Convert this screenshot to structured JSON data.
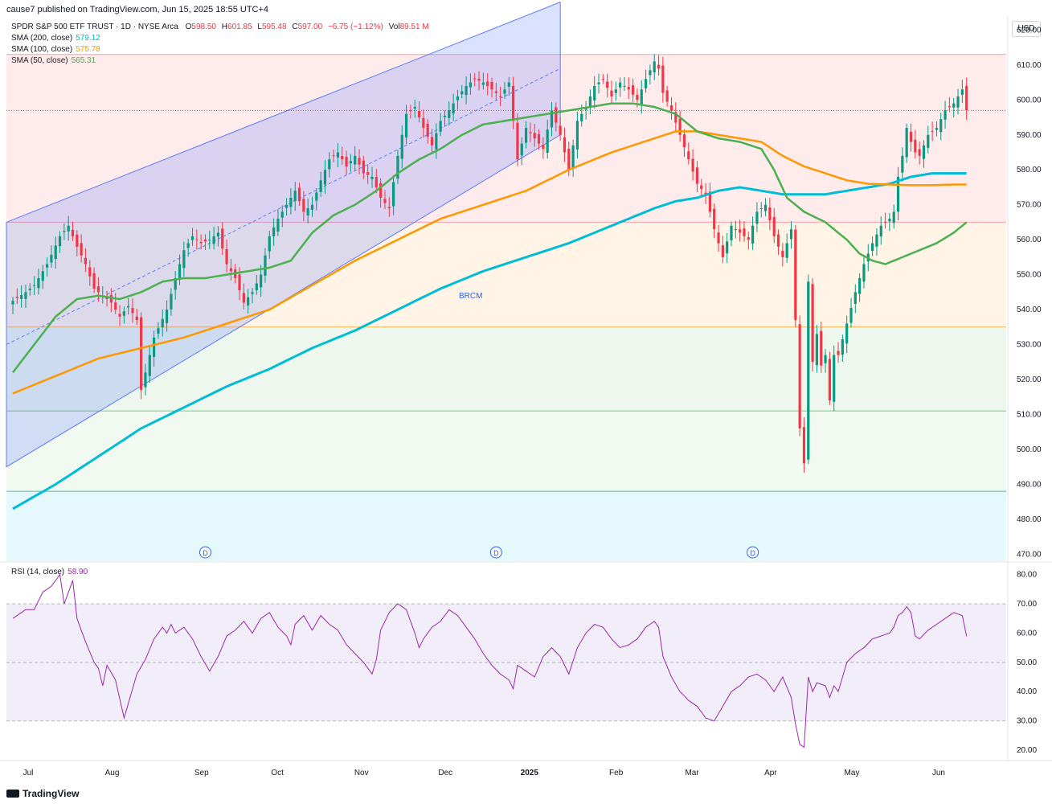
{
  "header": {
    "publish_line": "cause7 published on TradingView.com, Jun 15, 2025 18:55 UTC+4"
  },
  "symbol_line": {
    "name": "SPDR S&P 500 ETF TRUST · 1D · NYSE Arca",
    "o_label": "O",
    "o": "598.50",
    "h_label": "H",
    "h": "601.85",
    "l_label": "L",
    "l": "595.48",
    "c_label": "C",
    "c": "597.00",
    "change": "−6.75 (−1.12%)",
    "vol_label": "Vol",
    "vol": "89.51 M"
  },
  "indicators": [
    {
      "label": "SMA (200, close)",
      "value": "579.12",
      "color": "#00bcd4"
    },
    {
      "label": "SMA (100, close)",
      "value": "575.78",
      "color": "#ff9800"
    },
    {
      "label": "SMA (50, close)",
      "value": "565.31",
      "color": "#4caf50"
    }
  ],
  "currency_button": "USD",
  "rsi_legend": {
    "label": "RSI (14, close)",
    "value": "58.90",
    "color": "#9c27b0"
  },
  "annotation_text": "BRCM",
  "dividend_marker": "D",
  "branding": "TradingView",
  "chart_data": {
    "type": "candlestick",
    "colors": {
      "up": "#089981",
      "down": "#f23645",
      "sma50": "#4caf50",
      "sma100": "#ff9800",
      "sma200": "#00bcd4",
      "rsi": "#9c27b0",
      "channel": "#5b7cff"
    },
    "price_axis": {
      "ticks": [
        470,
        480,
        490,
        500,
        510,
        520,
        530,
        540,
        550,
        560,
        570,
        580,
        590,
        600,
        610,
        620
      ],
      "ylim": [
        468,
        624
      ],
      "current_price": "597.00"
    },
    "rsi_axis": {
      "ticks": [
        20,
        30,
        40,
        50,
        60,
        70,
        80
      ],
      "ylim": [
        17,
        84
      ],
      "bands": [
        30,
        50,
        70
      ]
    },
    "x_labels": [
      {
        "label": "Jul",
        "date": "2024-07-01"
      },
      {
        "label": "Aug",
        "date": "2024-08-01"
      },
      {
        "label": "Sep",
        "date": "2024-09-03"
      },
      {
        "label": "Oct",
        "date": "2024-10-01"
      },
      {
        "label": "Nov",
        "date": "2024-11-01"
      },
      {
        "label": "Dec",
        "date": "2024-12-02"
      },
      {
        "label": "2025",
        "date": "2025-01-02"
      },
      {
        "label": "Feb",
        "date": "2025-02-03"
      },
      {
        "label": "Mar",
        "date": "2025-03-03"
      },
      {
        "label": "Apr",
        "date": "2025-04-01"
      },
      {
        "label": "May",
        "date": "2025-05-01"
      },
      {
        "label": "Jun",
        "date": "2025-06-02"
      }
    ],
    "fib_levels": [
      613,
      565,
      535,
      511,
      488
    ],
    "close_anchors": [
      [
        0,
        542.5
      ],
      [
        3,
        545
      ],
      [
        5,
        547
      ],
      [
        8,
        553
      ],
      [
        11,
        561
      ],
      [
        13,
        564
      ],
      [
        15,
        558
      ],
      [
        17,
        553
      ],
      [
        19,
        546
      ],
      [
        21,
        544
      ],
      [
        23,
        542
      ],
      [
        25,
        538
      ],
      [
        27,
        541
      ],
      [
        29,
        537
      ],
      [
        30,
        517
      ],
      [
        31,
        522
      ],
      [
        33,
        532
      ],
      [
        36,
        540
      ],
      [
        38,
        549
      ],
      [
        40,
        557
      ],
      [
        42,
        561
      ],
      [
        44,
        559
      ],
      [
        46,
        560
      ],
      [
        48,
        562
      ],
      [
        50,
        553
      ],
      [
        52,
        549
      ],
      [
        54,
        542
      ],
      [
        56,
        545
      ],
      [
        58,
        550
      ],
      [
        60,
        561
      ],
      [
        62,
        566
      ],
      [
        64,
        570
      ],
      [
        66,
        574
      ],
      [
        68,
        568
      ],
      [
        70,
        570
      ],
      [
        72,
        577
      ],
      [
        74,
        583
      ],
      [
        76,
        585
      ],
      [
        78,
        581
      ],
      [
        80,
        584
      ],
      [
        82,
        579
      ],
      [
        84,
        578
      ],
      [
        86,
        572
      ],
      [
        88,
        569
      ],
      [
        90,
        584
      ],
      [
        92,
        596
      ],
      [
        94,
        598
      ],
      [
        96,
        592
      ],
      [
        98,
        587
      ],
      [
        100,
        594
      ],
      [
        102,
        597
      ],
      [
        104,
        601
      ],
      [
        106,
        604
      ],
      [
        108,
        606
      ],
      [
        110,
        605
      ],
      [
        112,
        603
      ],
      [
        114,
        601
      ],
      [
        116,
        605
      ],
      [
        118,
        583
      ],
      [
        120,
        592
      ],
      [
        122,
        589
      ],
      [
        124,
        586
      ],
      [
        126,
        597
      ],
      [
        128,
        590
      ],
      [
        130,
        580
      ],
      [
        132,
        594
      ],
      [
        134,
        598
      ],
      [
        136,
        604
      ],
      [
        138,
        606
      ],
      [
        140,
        601
      ],
      [
        142,
        605
      ],
      [
        144,
        603
      ],
      [
        146,
        600
      ],
      [
        148,
        606
      ],
      [
        150,
        611
      ],
      [
        151,
        609
      ],
      [
        152,
        602
      ],
      [
        154,
        597
      ],
      [
        156,
        590
      ],
      [
        158,
        583
      ],
      [
        160,
        576
      ],
      [
        162,
        573
      ],
      [
        164,
        563
      ],
      [
        166,
        555
      ],
      [
        168,
        564
      ],
      [
        170,
        562
      ],
      [
        172,
        560
      ],
      [
        174,
        568
      ],
      [
        176,
        570
      ],
      [
        178,
        561
      ],
      [
        180,
        555
      ],
      [
        182,
        563
      ],
      [
        183,
        537
      ],
      [
        184,
        506
      ],
      [
        185,
        496
      ],
      [
        186,
        548
      ],
      [
        187,
        525
      ],
      [
        188,
        533
      ],
      [
        189,
        524
      ],
      [
        190,
        527
      ],
      [
        191,
        514
      ],
      [
        192,
        527
      ],
      [
        193,
        527
      ],
      [
        195,
        536
      ],
      [
        197,
        545
      ],
      [
        199,
        553
      ],
      [
        201,
        559
      ],
      [
        203,
        564
      ],
      [
        205,
        566
      ],
      [
        206,
        568
      ],
      [
        207,
        578
      ],
      [
        208,
        584
      ],
      [
        209,
        592
      ],
      [
        210,
        588
      ],
      [
        211,
        585
      ],
      [
        212,
        584
      ],
      [
        214,
        590
      ],
      [
        216,
        592
      ],
      [
        218,
        597
      ],
      [
        220,
        599
      ],
      [
        222,
        603
      ],
      [
        223,
        597
      ]
    ],
    "sma50_anchors": [
      [
        0,
        522
      ],
      [
        5,
        530
      ],
      [
        10,
        538
      ],
      [
        15,
        543
      ],
      [
        20,
        544
      ],
      [
        25,
        543
      ],
      [
        30,
        545
      ],
      [
        35,
        548
      ],
      [
        40,
        549
      ],
      [
        45,
        549
      ],
      [
        50,
        550
      ],
      [
        55,
        551
      ],
      [
        60,
        552
      ],
      [
        65,
        554
      ],
      [
        70,
        562
      ],
      [
        75,
        567
      ],
      [
        80,
        570
      ],
      [
        85,
        574
      ],
      [
        90,
        579
      ],
      [
        95,
        583
      ],
      [
        100,
        586
      ],
      [
        105,
        590
      ],
      [
        110,
        593
      ],
      [
        115,
        594
      ],
      [
        120,
        595
      ],
      [
        125,
        596
      ],
      [
        130,
        597
      ],
      [
        135,
        598
      ],
      [
        140,
        599
      ],
      [
        145,
        599
      ],
      [
        150,
        598
      ],
      [
        155,
        596
      ],
      [
        160,
        591
      ],
      [
        165,
        589
      ],
      [
        170,
        588
      ],
      [
        175,
        586
      ],
      [
        178,
        580
      ],
      [
        181,
        572
      ],
      [
        185,
        568
      ],
      [
        190,
        565
      ],
      [
        195,
        560
      ],
      [
        198,
        556
      ],
      [
        201,
        554
      ],
      [
        204,
        553
      ],
      [
        208,
        555
      ],
      [
        212,
        557
      ],
      [
        216,
        559
      ],
      [
        220,
        562
      ],
      [
        223,
        565
      ]
    ],
    "sma100_anchors": [
      [
        0,
        516
      ],
      [
        10,
        521
      ],
      [
        20,
        526
      ],
      [
        30,
        529
      ],
      [
        40,
        532
      ],
      [
        50,
        536
      ],
      [
        60,
        540
      ],
      [
        70,
        547
      ],
      [
        80,
        554
      ],
      [
        90,
        560
      ],
      [
        100,
        566
      ],
      [
        110,
        570
      ],
      [
        120,
        574
      ],
      [
        130,
        580
      ],
      [
        140,
        585
      ],
      [
        150,
        589
      ],
      [
        155,
        591
      ],
      [
        160,
        591
      ],
      [
        165,
        590
      ],
      [
        170,
        589
      ],
      [
        175,
        588
      ],
      [
        180,
        584
      ],
      [
        185,
        581
      ],
      [
        190,
        579
      ],
      [
        195,
        577
      ],
      [
        200,
        576
      ],
      [
        205,
        575.8
      ],
      [
        210,
        575.6
      ],
      [
        215,
        575.6
      ],
      [
        220,
        575.8
      ],
      [
        223,
        575.8
      ]
    ],
    "sma200_anchors": [
      [
        0,
        483
      ],
      [
        10,
        490
      ],
      [
        20,
        498
      ],
      [
        30,
        506
      ],
      [
        40,
        512
      ],
      [
        50,
        518
      ],
      [
        60,
        523
      ],
      [
        70,
        529
      ],
      [
        80,
        534
      ],
      [
        90,
        540
      ],
      [
        100,
        546
      ],
      [
        110,
        551
      ],
      [
        120,
        555
      ],
      [
        130,
        559
      ],
      [
        140,
        564
      ],
      [
        150,
        569
      ],
      [
        155,
        571
      ],
      [
        160,
        572
      ],
      [
        165,
        574
      ],
      [
        170,
        575
      ],
      [
        175,
        574
      ],
      [
        180,
        573
      ],
      [
        185,
        573
      ],
      [
        190,
        573
      ],
      [
        195,
        574
      ],
      [
        200,
        575
      ],
      [
        205,
        576
      ],
      [
        210,
        578
      ],
      [
        215,
        579
      ],
      [
        220,
        579
      ],
      [
        223,
        579
      ]
    ],
    "rsi_anchors": [
      [
        0,
        65
      ],
      [
        3,
        68
      ],
      [
        5,
        68
      ],
      [
        7,
        74
      ],
      [
        9,
        76
      ],
      [
        11,
        80
      ],
      [
        12,
        70
      ],
      [
        14,
        78
      ],
      [
        15,
        65
      ],
      [
        17,
        57
      ],
      [
        19,
        50
      ],
      [
        20,
        48
      ],
      [
        21,
        42
      ],
      [
        22,
        49
      ],
      [
        24,
        44
      ],
      [
        26,
        31
      ],
      [
        27,
        36
      ],
      [
        29,
        46
      ],
      [
        31,
        51
      ],
      [
        33,
        58
      ],
      [
        35,
        62
      ],
      [
        36,
        60
      ],
      [
        37,
        63
      ],
      [
        38,
        60
      ],
      [
        40,
        62
      ],
      [
        42,
        58
      ],
      [
        44,
        52
      ],
      [
        46,
        47
      ],
      [
        48,
        52
      ],
      [
        50,
        59
      ],
      [
        52,
        61
      ],
      [
        54,
        64
      ],
      [
        56,
        60
      ],
      [
        58,
        65
      ],
      [
        60,
        67
      ],
      [
        62,
        62
      ],
      [
        64,
        59
      ],
      [
        65,
        56
      ],
      [
        66,
        63
      ],
      [
        68,
        66
      ],
      [
        70,
        61
      ],
      [
        72,
        66
      ],
      [
        74,
        63
      ],
      [
        76,
        61
      ],
      [
        78,
        56
      ],
      [
        80,
        53
      ],
      [
        82,
        50
      ],
      [
        84,
        46
      ],
      [
        85,
        51
      ],
      [
        86,
        61
      ],
      [
        88,
        67
      ],
      [
        90,
        70
      ],
      [
        92,
        68
      ],
      [
        94,
        60
      ],
      [
        95,
        55
      ],
      [
        96,
        58
      ],
      [
        98,
        62
      ],
      [
        100,
        64
      ],
      [
        102,
        68
      ],
      [
        104,
        66
      ],
      [
        106,
        62
      ],
      [
        108,
        58
      ],
      [
        110,
        53
      ],
      [
        112,
        49
      ],
      [
        114,
        46
      ],
      [
        116,
        44
      ],
      [
        117,
        41
      ],
      [
        118,
        49
      ],
      [
        120,
        47
      ],
      [
        122,
        45
      ],
      [
        124,
        52
      ],
      [
        126,
        55
      ],
      [
        128,
        52
      ],
      [
        130,
        46
      ],
      [
        132,
        55
      ],
      [
        134,
        60
      ],
      [
        136,
        63
      ],
      [
        138,
        62
      ],
      [
        140,
        58
      ],
      [
        142,
        55
      ],
      [
        144,
        56
      ],
      [
        146,
        58
      ],
      [
        148,
        62
      ],
      [
        150,
        64
      ],
      [
        151,
        62
      ],
      [
        152,
        52
      ],
      [
        154,
        45
      ],
      [
        156,
        40
      ],
      [
        158,
        37
      ],
      [
        160,
        35
      ],
      [
        162,
        31
      ],
      [
        164,
        30
      ],
      [
        166,
        35
      ],
      [
        168,
        40
      ],
      [
        170,
        42
      ],
      [
        172,
        45
      ],
      [
        174,
        46
      ],
      [
        176,
        44
      ],
      [
        178,
        40
      ],
      [
        180,
        45
      ],
      [
        182,
        38
      ],
      [
        183,
        29
      ],
      [
        184,
        22
      ],
      [
        185,
        21
      ],
      [
        186,
        45
      ],
      [
        187,
        40
      ],
      [
        188,
        43
      ],
      [
        190,
        42
      ],
      [
        191,
        38
      ],
      [
        192,
        42
      ],
      [
        193,
        40
      ],
      [
        195,
        50
      ],
      [
        197,
        53
      ],
      [
        199,
        55
      ],
      [
        201,
        58
      ],
      [
        203,
        59
      ],
      [
        205,
        60
      ],
      [
        206,
        62
      ],
      [
        207,
        66
      ],
      [
        208,
        67
      ],
      [
        209,
        69
      ],
      [
        210,
        67
      ],
      [
        211,
        59
      ],
      [
        212,
        58
      ],
      [
        214,
        61
      ],
      [
        216,
        63
      ],
      [
        218,
        65
      ],
      [
        220,
        67
      ],
      [
        222,
        66
      ],
      [
        223,
        58.9
      ]
    ],
    "channel": {
      "lower_start": [
        0,
        495
      ],
      "lower_end": [
        128,
        590
      ],
      "upper_start": [
        0,
        565
      ],
      "upper_end": [
        128,
        628
      ],
      "mid_start": [
        0,
        530
      ],
      "mid_end": [
        128,
        609
      ]
    },
    "dividend_bars": [
      45,
      113,
      173
    ]
  }
}
